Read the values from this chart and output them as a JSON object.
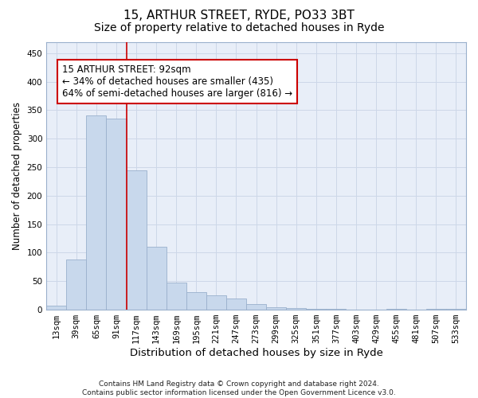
{
  "title_line1": "15, ARTHUR STREET, RYDE, PO33 3BT",
  "title_line2": "Size of property relative to detached houses in Ryde",
  "xlabel": "Distribution of detached houses by size in Ryde",
  "ylabel": "Number of detached properties",
  "footnote": "Contains HM Land Registry data © Crown copyright and database right 2024.\nContains public sector information licensed under the Open Government Licence v3.0.",
  "bar_labels": [
    "13sqm",
    "39sqm",
    "65sqm",
    "91sqm",
    "117sqm",
    "143sqm",
    "169sqm",
    "195sqm",
    "221sqm",
    "247sqm",
    "273sqm",
    "299sqm",
    "325sqm",
    "351sqm",
    "377sqm",
    "403sqm",
    "429sqm",
    "455sqm",
    "481sqm",
    "507sqm",
    "533sqm"
  ],
  "bar_values": [
    7,
    88,
    341,
    335,
    245,
    110,
    48,
    31,
    25,
    20,
    10,
    5,
    3,
    2,
    1,
    0,
    0,
    1,
    0,
    2,
    1
  ],
  "bar_color": "#c8d8ec",
  "bar_edge_color": "#9ab0cc",
  "bar_linewidth": 0.6,
  "property_line_x": 3.5,
  "property_line_color": "#cc0000",
  "annotation_text": "15 ARTHUR STREET: 92sqm\n← 34% of detached houses are smaller (435)\n64% of semi-detached houses are larger (816) →",
  "annotation_box_color": "#ffffff",
  "annotation_box_edgecolor": "#cc0000",
  "ylim": [
    0,
    470
  ],
  "yticks": [
    0,
    50,
    100,
    150,
    200,
    250,
    300,
    350,
    400,
    450
  ],
  "grid_color": "#cdd7e8",
  "bg_color": "#e8eef8",
  "fig_bg_color": "#ffffff",
  "title1_fontsize": 11,
  "title2_fontsize": 10,
  "xlabel_fontsize": 9.5,
  "ylabel_fontsize": 8.5,
  "tick_fontsize": 7.5,
  "annot_fontsize": 8.5
}
